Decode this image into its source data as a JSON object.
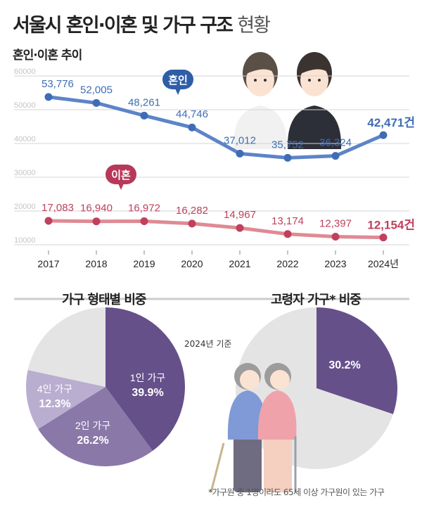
{
  "title": {
    "main": "서울시 혼인·이혼 및 가구 구조",
    "light": "현황"
  },
  "chart_data": [
    {
      "type": "line",
      "title": "혼인·이혼 추이",
      "categories": [
        "2017",
        "2018",
        "2019",
        "2020",
        "2021",
        "2022",
        "2023",
        "2024년"
      ],
      "ylim": [
        10000,
        60000
      ],
      "yticks": [
        "60000",
        "50000",
        "40000",
        "30000",
        "20000",
        "10000"
      ],
      "grid": true,
      "series": [
        {
          "name": "혼인",
          "color": "#3f6db5",
          "values": [
            53776,
            52005,
            48261,
            44746,
            37012,
            35752,
            36324,
            42471
          ],
          "labels": [
            "53,776",
            "52,005",
            "48,261",
            "44,746",
            "37,012",
            "35,752",
            "36,324",
            "42,471건"
          ]
        },
        {
          "name": "이혼",
          "color": "#c0405d",
          "values": [
            17083,
            16940,
            16972,
            16282,
            14967,
            13174,
            12397,
            12154
          ],
          "labels": [
            "17,083",
            "16,940",
            "16,972",
            "16,282",
            "14,967",
            "13,174",
            "12,397",
            "12,154건"
          ]
        }
      ]
    },
    {
      "type": "pie",
      "title": "가구 형태별 비중",
      "slices": [
        {
          "label": "1인 가구",
          "value": 39.9,
          "text": "39.9%",
          "color": "#65508a"
        },
        {
          "label": "2인 가구",
          "value": 26.2,
          "text": "26.2%",
          "color": "#8a78a8"
        },
        {
          "label": "4인 가구",
          "value": 12.3,
          "text": "12.3%",
          "color": "#b9aed0"
        },
        {
          "label": "",
          "value": 21.6,
          "text": "",
          "color": "#e4e4e4"
        }
      ]
    },
    {
      "type": "pie",
      "title": "고령자 가구* 비중",
      "slices": [
        {
          "label": "",
          "value": 30.2,
          "text": "30.2%",
          "color": "#65508a"
        },
        {
          "label": "",
          "value": 69.8,
          "text": "",
          "color": "#e4e4e4"
        }
      ]
    }
  ],
  "basis": "2024년 기준",
  "footnote": "*가구원 중 1명이라도 65세 이상 가구원이 있는 가구"
}
